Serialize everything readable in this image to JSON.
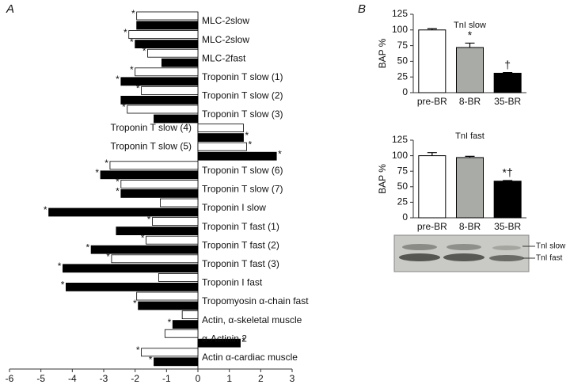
{
  "panel_labels": [
    "A",
    "B"
  ],
  "chart_data": [
    {
      "type": "hbar",
      "categories": [
        "MLC-2slow",
        "MLC-2slow",
        "MLC-2fast",
        "Troponin T slow (1)",
        "Troponin T slow (2)",
        "Troponin T slow (3)",
        "Troponin T slow (4)",
        "Troponin T slow (5)",
        "Troponin T slow (6)",
        "Troponin T slow (7)",
        "Troponin I slow",
        "Troponin T fast (1)",
        "Troponin T fast (2)",
        "Troponin T fast (3)",
        "Troponin I fast",
        "Tropomyosin α-chain fast",
        "Actin, α-skeletal muscle",
        "α-Actinin 2",
        "Actin α-cardiac muscle"
      ],
      "series": [
        {
          "color": "#ffffff",
          "values": [
            -1.95,
            -2.2,
            -1.6,
            -2.0,
            -1.8,
            -2.25,
            1.45,
            1.55,
            -2.8,
            -2.45,
            -1.2,
            -1.45,
            -1.65,
            -2.75,
            -1.25,
            -1.95,
            -0.5,
            -1.05,
            -1.8
          ],
          "marks": [
            "*",
            "*",
            "*",
            "*",
            "*",
            "*",
            null,
            "*",
            "*",
            "*",
            null,
            "*",
            "*",
            "*",
            null,
            null,
            null,
            null,
            "*"
          ]
        },
        {
          "color": "#000000",
          "values": [
            -1.95,
            -2.0,
            -1.15,
            -2.45,
            -2.45,
            -1.4,
            1.45,
            2.5,
            -3.1,
            -2.45,
            -4.75,
            -2.6,
            -3.4,
            -4.3,
            -4.2,
            -1.9,
            -0.8,
            1.35,
            -1.4
          ],
          "marks": [
            null,
            "*",
            null,
            "*",
            null,
            null,
            "*",
            "*",
            "*",
            "*",
            "*",
            null,
            "*",
            "*",
            "*",
            "*",
            "*",
            "*",
            "*"
          ]
        }
      ],
      "xlim": [
        -6,
        3
      ],
      "xticks": [
        -6,
        -5,
        -4,
        -3,
        -2,
        -1,
        0,
        1,
        2,
        3
      ]
    },
    {
      "type": "bar",
      "title": "TnI slow",
      "ylabel": "BAP %",
      "categories": [
        "pre-BR",
        "8-BR",
        "35-BR"
      ],
      "values": [
        100,
        72,
        31
      ],
      "errors": [
        2,
        7,
        1
      ],
      "colors": [
        "#ffffff",
        "#a8aba6",
        "#000000"
      ],
      "annotations": [
        null,
        "*",
        "†"
      ],
      "ylim": [
        0,
        125
      ],
      "yticks": [
        0,
        25,
        50,
        75,
        100,
        125
      ]
    },
    {
      "type": "bar",
      "title": "TnI fast",
      "ylabel": "BAP %",
      "categories": [
        "pre-BR",
        "8-BR",
        "35-BR"
      ],
      "values": [
        100,
        97,
        59
      ],
      "errors": [
        5,
        2,
        1
      ],
      "colors": [
        "#ffffff",
        "#a8aba6",
        "#000000"
      ],
      "annotations": [
        null,
        null,
        "*†"
      ],
      "ylim": [
        0,
        125
      ],
      "yticks": [
        0,
        25,
        50,
        75,
        100,
        125
      ]
    }
  ],
  "blot": {
    "labels": [
      "TnI slow",
      "TnI fast"
    ]
  }
}
